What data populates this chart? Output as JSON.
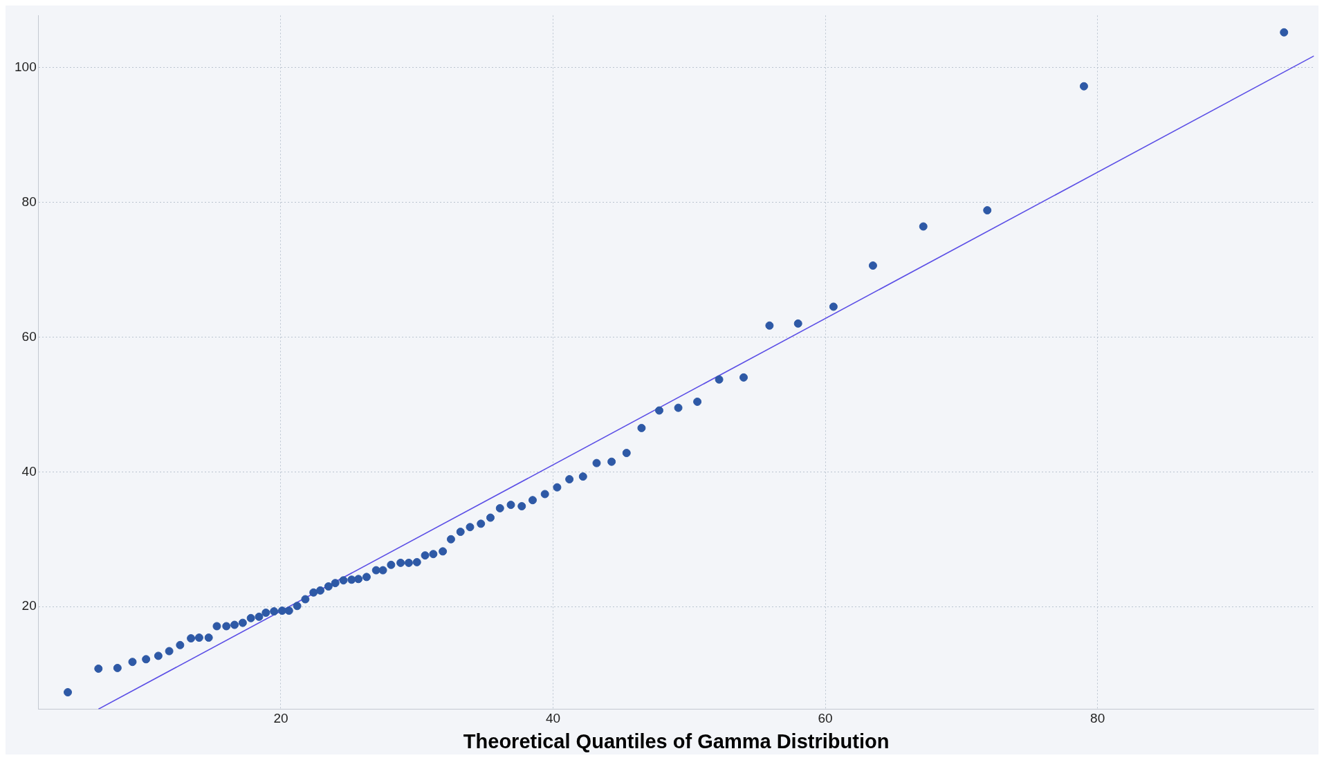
{
  "chart_data": {
    "type": "scatter",
    "xlabel": "Theoretical Quantiles of Gamma Distribution",
    "xlim": [
      2.2,
      95.9
    ],
    "ylim": [
      4.8,
      107.7
    ],
    "xticks": [
      20,
      40,
      60,
      80
    ],
    "yticks": [
      20,
      40,
      60,
      80,
      100
    ],
    "grid": true,
    "legend": false,
    "series": [
      {
        "marker": "circle",
        "color": "#2e59a6",
        "x": [
          4.35,
          6.6,
          8.0,
          9.1,
          10.1,
          11.0,
          11.8,
          12.6,
          13.4,
          14.0,
          14.7,
          15.3,
          16.0,
          16.6,
          17.2,
          17.8,
          18.4,
          18.9,
          19.5,
          20.1,
          20.6,
          21.2,
          21.8,
          22.4,
          22.9,
          23.5,
          24.0,
          24.6,
          25.2,
          25.7,
          26.3,
          27.0,
          27.5,
          28.1,
          28.8,
          29.4,
          30.0,
          30.6,
          31.2,
          31.9,
          32.5,
          33.2,
          33.9,
          34.7,
          35.4,
          36.1,
          36.9,
          37.7,
          38.5,
          39.4,
          40.3,
          41.2,
          42.2,
          43.2,
          44.3,
          45.4,
          46.5,
          47.8,
          49.2,
          50.6,
          52.2,
          54.0,
          55.9,
          58.0,
          60.6,
          63.5,
          67.2,
          71.9,
          79.0,
          93.7
        ],
        "values": [
          7.3,
          10.8,
          10.9,
          11.8,
          12.2,
          12.7,
          13.4,
          14.3,
          15.3,
          15.4,
          15.4,
          17.1,
          17.1,
          17.3,
          17.6,
          18.3,
          18.5,
          19.1,
          19.3,
          19.4,
          19.4,
          20.1,
          21.1,
          22.1,
          22.4,
          23.0,
          23.5,
          23.9,
          24.0,
          24.1,
          24.4,
          25.4,
          25.4,
          26.2,
          26.5,
          26.5,
          26.6,
          27.6,
          27.8,
          28.2,
          30.0,
          31.1,
          31.8,
          32.3,
          33.2,
          34.6,
          35.1,
          34.9,
          35.8,
          36.7,
          37.7,
          38.9,
          39.3,
          41.3,
          41.5,
          42.8,
          46.5,
          49.1,
          49.5,
          50.4,
          53.7,
          54.0,
          61.7,
          62.0,
          64.5,
          70.6,
          76.4,
          78.8,
          97.2,
          105.2
        ]
      },
      {
        "type": "line",
        "marker": "none",
        "color": "#5b4ee6",
        "line_style": "solid",
        "x": [
          6.6,
          95.9
        ],
        "values": [
          4.8,
          101.7
        ]
      }
    ]
  }
}
